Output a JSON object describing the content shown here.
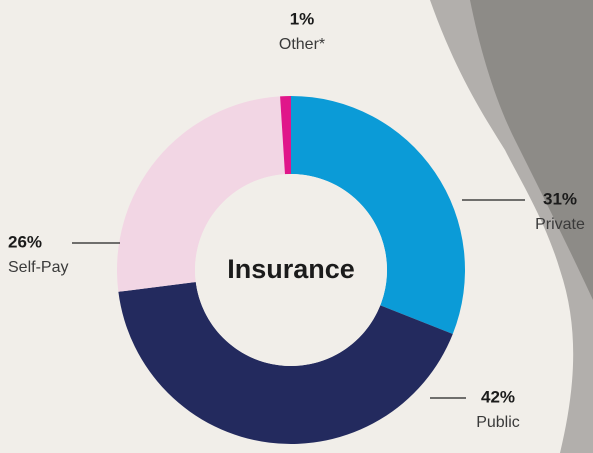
{
  "chart_data": {
    "type": "donut",
    "title": "Insurance",
    "categories": [
      "Private",
      "Public",
      "Self-Pay",
      "Other*"
    ],
    "values": [
      31,
      42,
      26,
      1
    ],
    "value_labels": [
      "31%",
      "42%",
      "26%",
      "1%"
    ],
    "colors": [
      "#0b9bd7",
      "#232a5e",
      "#f2d6e4",
      "#e0168a"
    ]
  }
}
